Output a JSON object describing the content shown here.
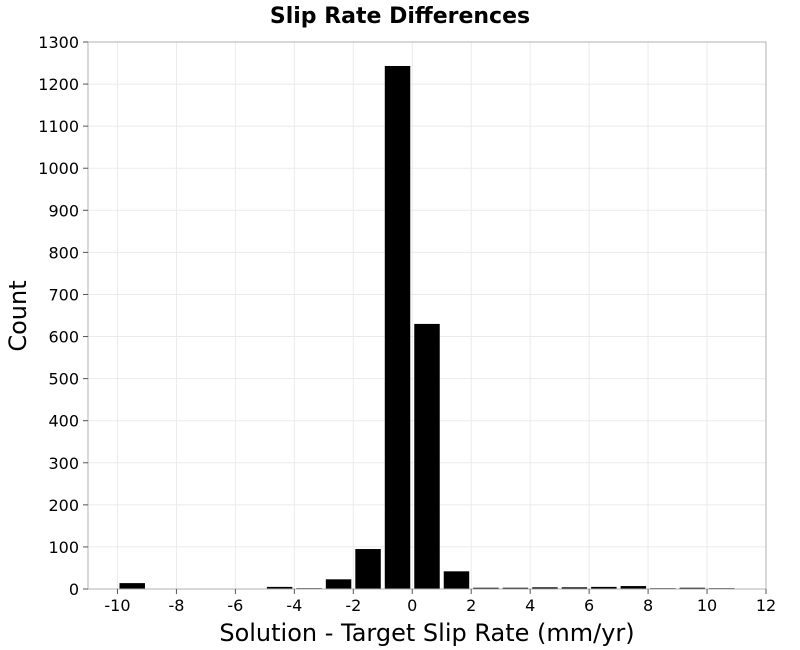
{
  "chart_data": {
    "type": "bar",
    "title": "Slip Rate Differences",
    "xlabel": "Solution - Target Slip Rate (mm/yr)",
    "ylabel": "Count",
    "xlim": [
      -11,
      12
    ],
    "ylim": [
      0,
      1300
    ],
    "xticks": [
      "-10",
      "-8",
      "-6",
      "-4",
      "-2",
      "0",
      "2",
      "4",
      "6",
      "8",
      "10",
      "12"
    ],
    "yticks": [
      "0",
      "100",
      "200",
      "300",
      "400",
      "500",
      "600",
      "700",
      "800",
      "900",
      "1000",
      "1100",
      "1200",
      "1300"
    ],
    "bin_width": 1,
    "grid": true,
    "bar_color": "#000000",
    "x": [
      -9.5,
      -8.5,
      -7.5,
      -6.5,
      -5.5,
      -4.5,
      -3.5,
      -2.5,
      -1.5,
      -0.5,
      0.5,
      1.5,
      2.5,
      3.5,
      4.5,
      5.5,
      6.5,
      7.5,
      8.5,
      9.5,
      10.5
    ],
    "values": [
      14,
      0,
      0,
      0,
      0,
      5,
      2,
      23,
      95,
      1243,
      630,
      42,
      3,
      3,
      4,
      4,
      5,
      7,
      2,
      3,
      2
    ]
  }
}
